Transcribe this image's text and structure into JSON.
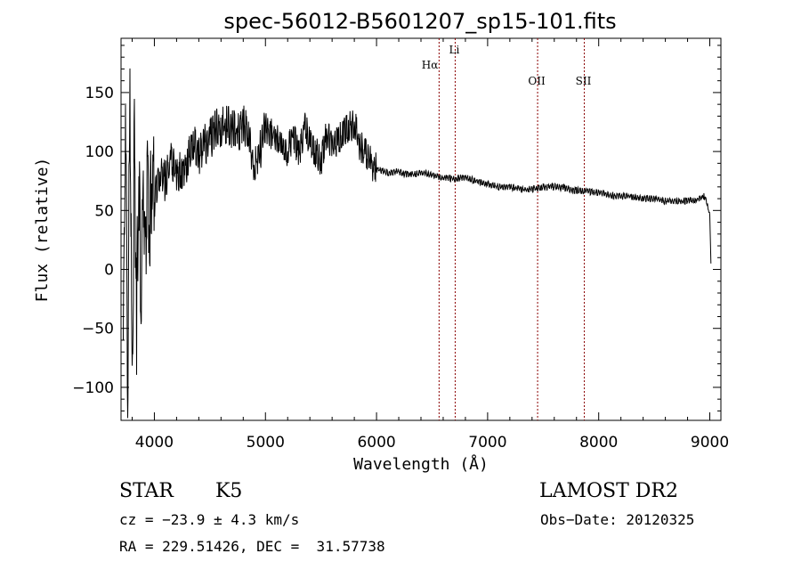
{
  "chart_data": {
    "type": "line",
    "title": "spec-56012-B5601207_sp15-101.fits",
    "xlabel": "Wavelength (Å)",
    "ylabel": "Flux (relative)",
    "xlim": [
      3700,
      9100
    ],
    "ylim": [
      -128,
      196
    ],
    "x_ticks": [
      4000,
      5000,
      6000,
      7000,
      8000,
      9000
    ],
    "y_ticks": [
      -100,
      -50,
      0,
      50,
      100,
      150
    ],
    "grid": false,
    "series": [
      {
        "x": [
          3720,
          3740,
          3760,
          3780,
          3800,
          3820,
          3840,
          3860,
          3880,
          3900,
          3920,
          3940,
          3960,
          3980,
          4000,
          4050,
          4100,
          4150,
          4200,
          4250,
          4300,
          4350,
          4400,
          4450,
          4500,
          4550,
          4600,
          4650,
          4700,
          4750,
          4800,
          4850,
          4900,
          4950,
          5000,
          5050,
          5100,
          5150,
          5200,
          5250,
          5300,
          5350,
          5400,
          5450,
          5500,
          5550,
          5600,
          5650,
          5700,
          5750,
          5800,
          5850,
          5900,
          5950,
          6000,
          6100,
          6200,
          6300,
          6400,
          6500,
          6600,
          6700,
          6800,
          6900,
          7000,
          7100,
          7200,
          7300,
          7400,
          7500,
          7600,
          7700,
          7800,
          7900,
          8000,
          8100,
          8200,
          8300,
          8400,
          8500,
          8600,
          8700,
          8800,
          8900,
          8950,
          8980,
          9000,
          9010
        ],
        "y": [
          -60,
          150,
          -110,
          160,
          -120,
          110,
          -40,
          90,
          -20,
          70,
          20,
          80,
          40,
          90,
          60,
          80,
          75,
          95,
          80,
          85,
          90,
          110,
          95,
          105,
          110,
          120,
          120,
          125,
          120,
          115,
          125,
          110,
          85,
          100,
          120,
          115,
          110,
          110,
          100,
          115,
          95,
          120,
          110,
          100,
          90,
          115,
          105,
          110,
          115,
          120,
          125,
          105,
          100,
          90,
          85,
          82,
          83,
          80,
          82,
          80,
          78,
          77,
          78,
          75,
          72,
          70,
          70,
          68,
          68,
          70,
          70,
          69,
          67,
          66,
          65,
          63,
          62,
          62,
          60,
          60,
          58,
          58,
          58,
          60,
          62,
          55,
          45,
          5
        ]
      }
    ],
    "annotations": [
      {
        "label": "Hα",
        "x": 6563
      },
      {
        "label": "Li",
        "x": 6708
      },
      {
        "label": "OII",
        "x": 7450
      },
      {
        "label": "SII",
        "x": 7870
      }
    ]
  },
  "info": {
    "object_class": "STAR",
    "subclass": "K5",
    "survey": "LAMOST DR2",
    "redshift_text": "cz = −23.9 ± 4.3 km/s",
    "obs_date_text": "Obs−Date: 20120325",
    "coords_text": "RA = 229.51426, DEC =  31.57738"
  },
  "colors": {
    "spectrum": "#000000",
    "line_markers": "#8b0000",
    "background": "#ffffff"
  }
}
